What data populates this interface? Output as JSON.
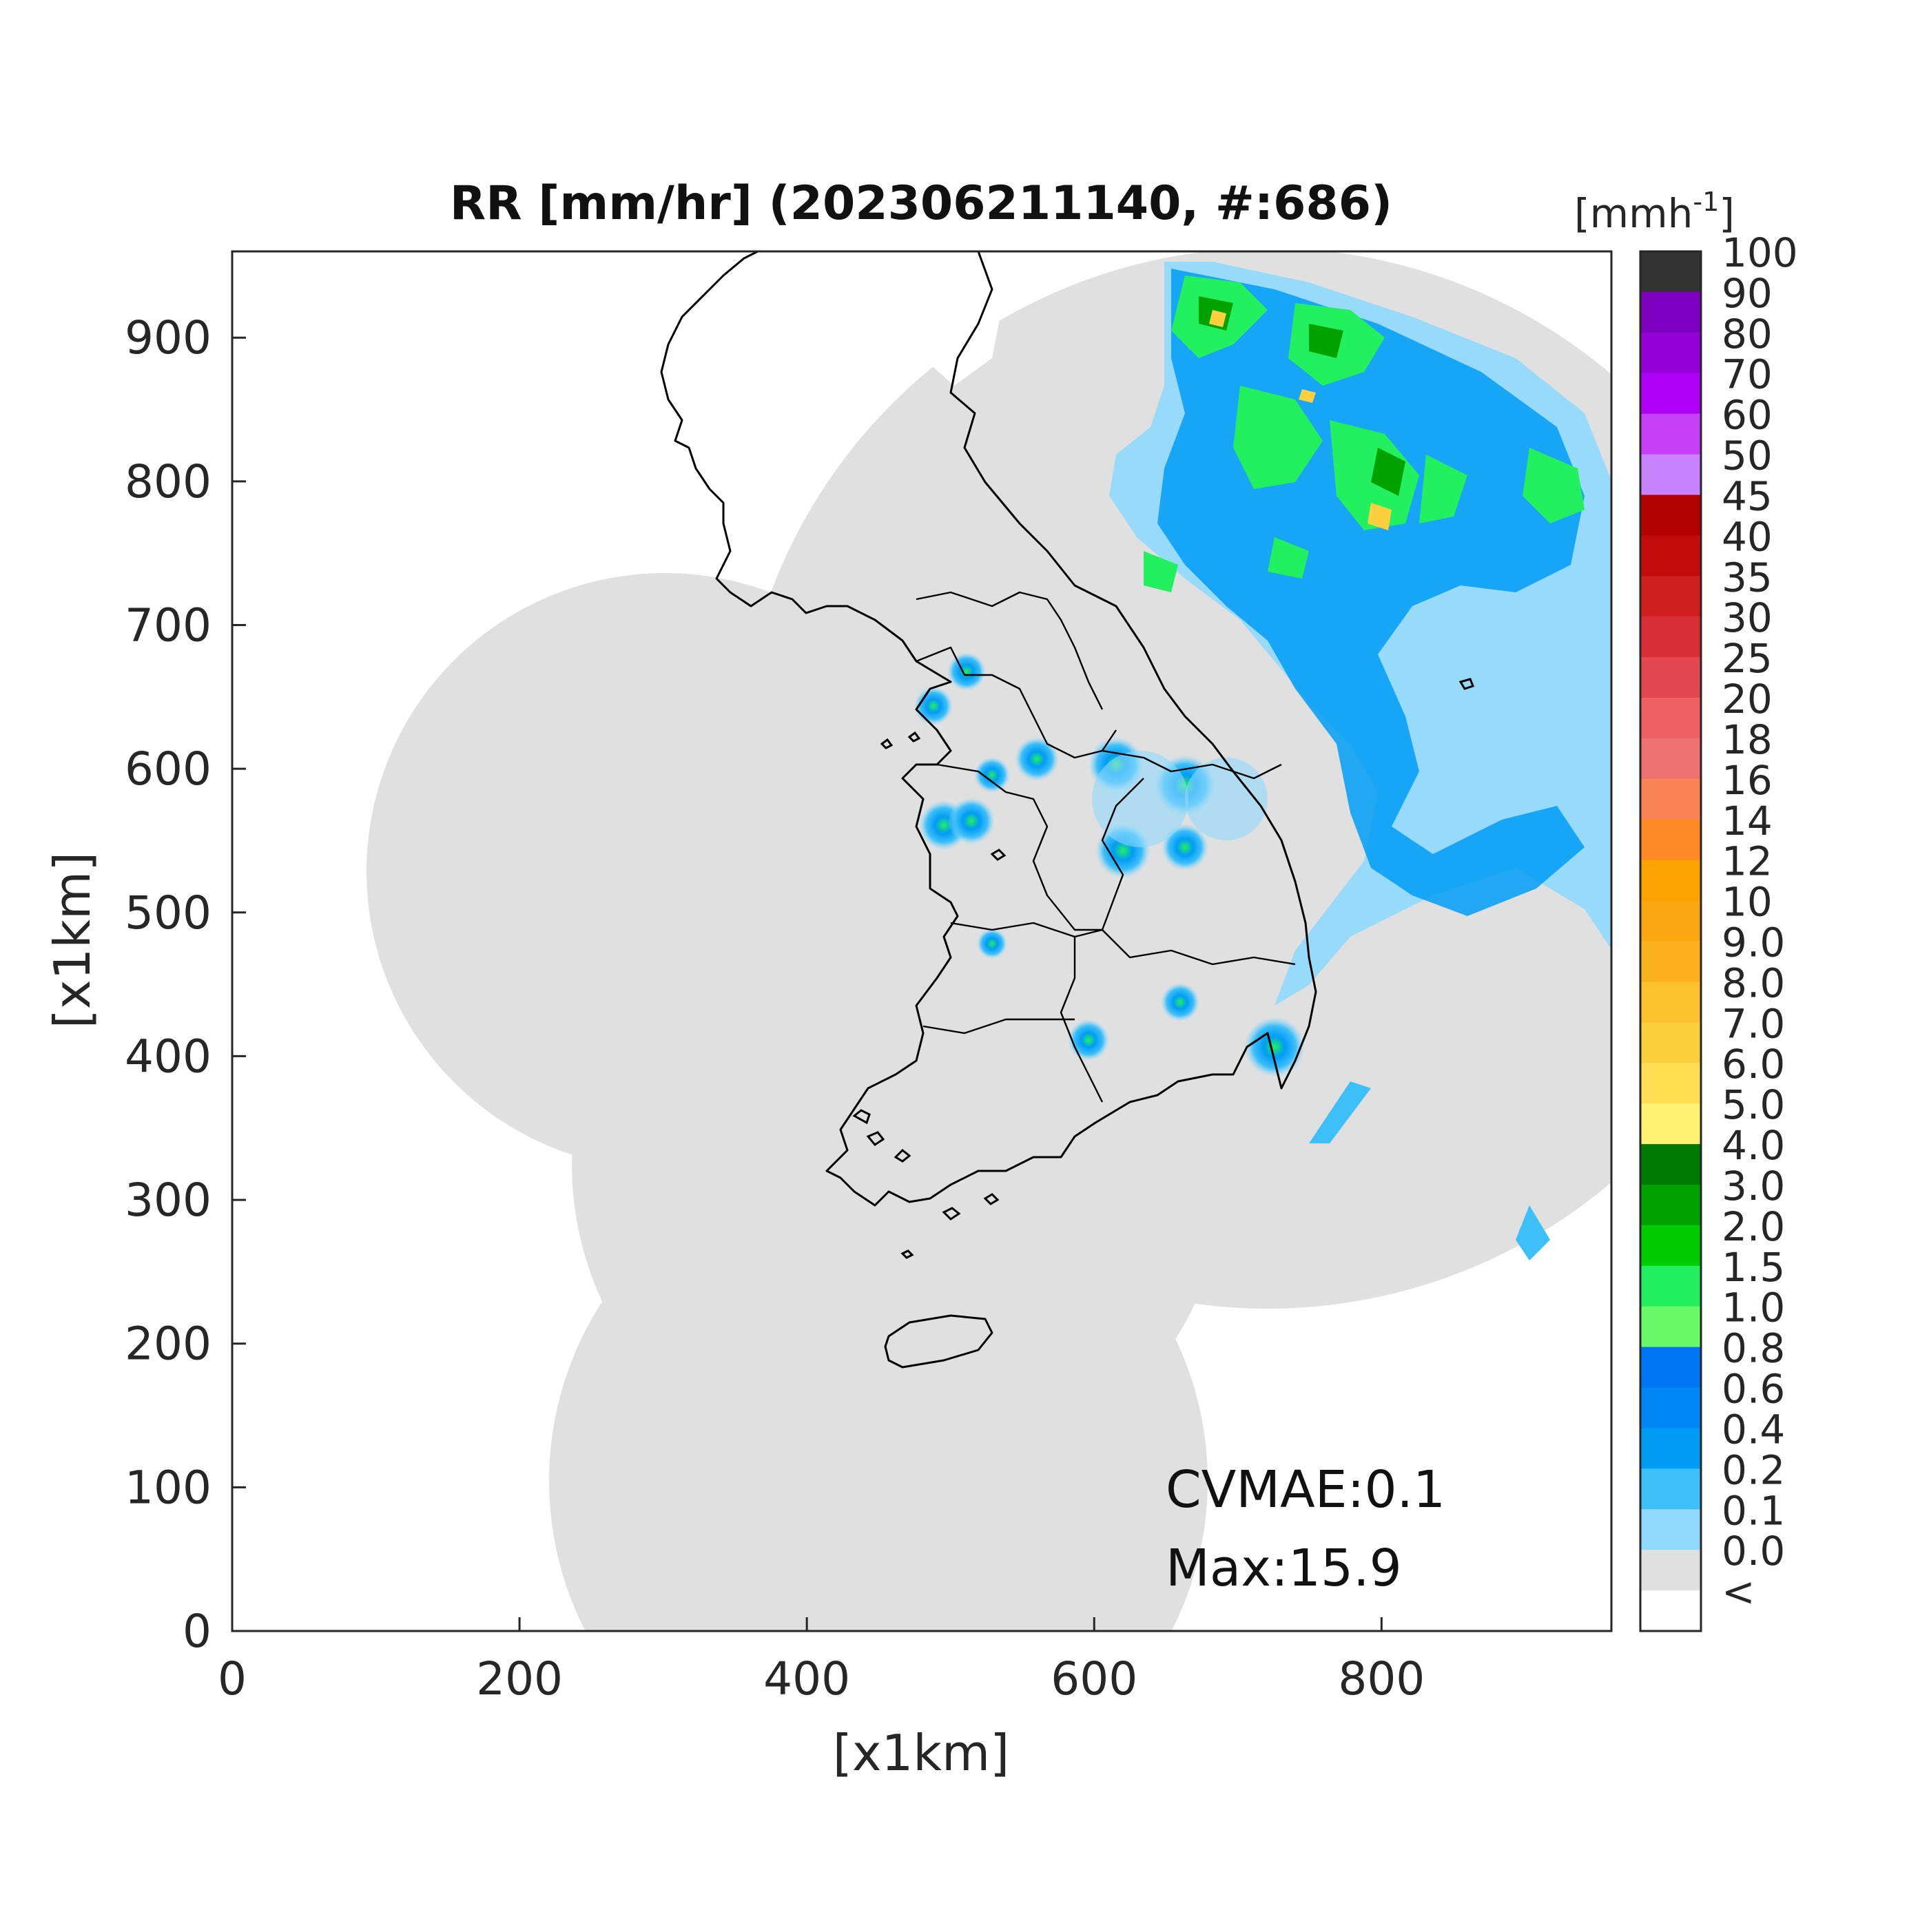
{
  "map": {
    "title": "RR [mm/hr] (202306211140, #:686)",
    "x_label": "[x1km]",
    "y_label": "[x1km]",
    "x_ticks": [
      "0",
      "200",
      "400",
      "600",
      "800"
    ],
    "y_ticks": [
      "0",
      "100",
      "200",
      "300",
      "400",
      "500",
      "600",
      "700",
      "800",
      "900"
    ],
    "x_range_km": [
      0,
      960
    ],
    "y_range_km": [
      0,
      960
    ],
    "annotations": {
      "cvmae": "CVMAE:0.1",
      "max": "Max:15.9"
    },
    "coverage_color": "#e0e0e0",
    "colorbar": {
      "unit_text": "[mmh",
      "unit_sup": "-1",
      "unit_close": "]",
      "labels": [
        "100",
        "90",
        "80",
        "70",
        "60",
        "50",
        "45",
        "40",
        "35",
        "30",
        "25",
        "20",
        "18",
        "16",
        "14",
        "12",
        "10",
        "9.0",
        "8.0",
        "7.0",
        "6.0",
        "5.0",
        "4.0",
        "3.0",
        "2.0",
        "1.5",
        "1.0",
        "0.8",
        "0.6",
        "0.4",
        "0.2",
        "0.1",
        "0.0",
        "<"
      ],
      "colors": [
        "#333333",
        "#7d00c0",
        "#9600d8",
        "#ae00f6",
        "#c540f8",
        "#c882fb",
        "#b40000",
        "#c40b0b",
        "#d21e1e",
        "#db2f37",
        "#e34752",
        "#f06060",
        "#f07373",
        "#fa8455",
        "#fe8a26",
        "#fca100",
        "#fba70f",
        "#fbb11c",
        "#fcc22e",
        "#fccf3f",
        "#fedf54",
        "#fef274",
        "#007a00",
        "#00a200",
        "#00cc00",
        "#22f05f",
        "#69fa6a",
        "#0076f5",
        "#0086f5",
        "#009cf5",
        "#3dbff8",
        "#8fd9fc",
        "#e0e0e0",
        "#ffffff"
      ]
    }
  }
}
